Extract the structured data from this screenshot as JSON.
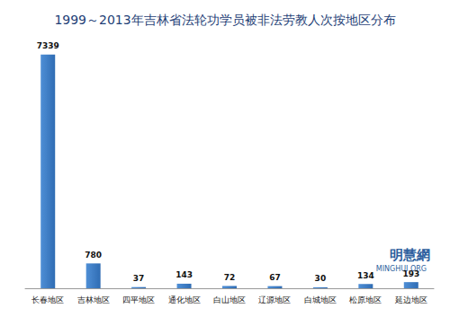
{
  "chart_data": {
    "type": "bar",
    "title": "1999～2013年吉林省法轮功学员被非法劳教人次按地区分布",
    "categories": [
      "长春地区",
      "吉林地区",
      "四平地区",
      "通化地区",
      "白山地区",
      "辽源地区",
      "白城地区",
      "松原地区",
      "延边地区"
    ],
    "values": [
      7339,
      780,
      37,
      143,
      72,
      67,
      30,
      134,
      193
    ],
    "color": "#4f8fd6",
    "ylim": [
      0,
      7500
    ],
    "yticks": [
      0,
      7500
    ],
    "grid": false,
    "data_labels": true,
    "tick_labels": "x",
    "annotations": [
      "明慧網",
      "MINGHUI.ORG"
    ]
  }
}
